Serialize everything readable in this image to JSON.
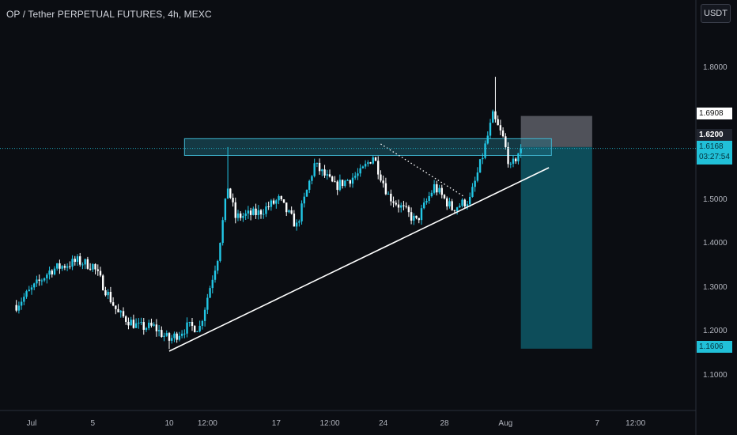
{
  "header": {
    "title": "OP / Tether PERPETUAL FUTURES, 4h, MEXC",
    "currency_button": "USDT"
  },
  "price_badges": {
    "stop": "1.6908",
    "entry": "1.6200",
    "last": "1.6168",
    "countdown": "03:27:54",
    "target": "1.1606"
  },
  "colors": {
    "background": "#0b0d12",
    "up_candle": "#22c7e6",
    "down_candle": "#ffffff",
    "zone": "#1e6f82",
    "profit": "#0f6373",
    "loss": "#6e7079",
    "trendline": "#ffffff"
  },
  "chart_data": {
    "type": "candlestick",
    "title": "OP / Tether PERPETUAL FUTURES, 4h, MEXC",
    "y_axis": {
      "ticks": [
        1.1,
        1.2,
        1.3,
        1.4,
        1.5,
        1.8
      ],
      "tick_labels": [
        "1.1000",
        "1.2000",
        "1.3000",
        "1.4000",
        "1.5000",
        "1.8000"
      ],
      "range": [
        1.02,
        1.92
      ]
    },
    "x_axis": {
      "tick_labels": [
        "Jul",
        "5",
        "10",
        "12:00",
        "17",
        "12:00",
        "24",
        "28",
        "Aug",
        "7",
        "12:00"
      ]
    },
    "price_path": [
      {
        "t": "Jun 30 00:00",
        "p": 1.26
      },
      {
        "t": "Jul 2 06:00",
        "p": 1.34
      },
      {
        "t": "Jul 4 00:00",
        "p": 1.36
      },
      {
        "t": "Jul 5 00:00",
        "p": 1.35
      },
      {
        "t": "Jul 6 16:00",
        "p": 1.24
      },
      {
        "t": "Jul 8 00:00",
        "p": 1.21
      },
      {
        "t": "Jul 9 00:00",
        "p": 1.21
      },
      {
        "t": "Jul 10 00:00",
        "p": 1.18
      },
      {
        "t": "Jul 11 04:00",
        "p": 1.21
      },
      {
        "t": "Jul 12 00:00",
        "p": 1.21
      },
      {
        "t": "Jul 13 04:00",
        "p": 1.37
      },
      {
        "t": "Jul 13 20:00",
        "p": 1.53
      },
      {
        "t": "Jul 14 08:00",
        "p": 1.46
      },
      {
        "t": "Jul 15 20:00",
        "p": 1.47
      },
      {
        "t": "Jul 17 04:00",
        "p": 1.5
      },
      {
        "t": "Jul 18 08:00",
        "p": 1.44
      },
      {
        "t": "Jul 19 12:00",
        "p": 1.58
      },
      {
        "t": "Jul 20 20:00",
        "p": 1.53
      },
      {
        "t": "Jul 22 12:00",
        "p": 1.56
      },
      {
        "t": "Jul 23 08:00",
        "p": 1.6
      },
      {
        "t": "Jul 24 08:00",
        "p": 1.51
      },
      {
        "t": "Jul 26 04:00",
        "p": 1.45
      },
      {
        "t": "Jul 27 08:00",
        "p": 1.53
      },
      {
        "t": "Jul 28 12:00",
        "p": 1.48
      },
      {
        "t": "Jul 29 16:00",
        "p": 1.5
      },
      {
        "t": "Jul 30 12:00",
        "p": 1.6
      },
      {
        "t": "Jul 31 04:00",
        "p": 1.69
      },
      {
        "t": "Jul 31 20:00",
        "p": 1.64
      },
      {
        "t": "Aug 1 08:00",
        "p": 1.57
      },
      {
        "t": "Aug 2 00:00",
        "p": 1.62
      }
    ],
    "wick_extremes": [
      {
        "t": "Jul 31 08:00",
        "high": 1.78
      },
      {
        "t": "Jul 13 20:00",
        "high": 1.62
      },
      {
        "t": "Jul 10 00:00",
        "low": 1.16
      }
    ],
    "resistance_zone": {
      "from": "Jul 11 00:00",
      "to": "Aug 4 00:00",
      "high": 1.639,
      "low": 1.6009
    },
    "trendline": {
      "start": {
        "t": "Jul 10 00:00",
        "p": 1.155
      },
      "end": {
        "t": "Aug 3 20:00",
        "p": 1.573
      }
    },
    "dotted_line": {
      "start": {
        "t": "Jul 23 20:00",
        "p": 1.627
      },
      "end": {
        "t": "Jul 29 08:00",
        "p": 1.506
      }
    },
    "short_position": {
      "from": "Aug 2 00:00",
      "to": "Aug 6 16:00",
      "stop": 1.6908,
      "entry": 1.62,
      "target": 1.1606
    },
    "last_price": 1.6168
  }
}
